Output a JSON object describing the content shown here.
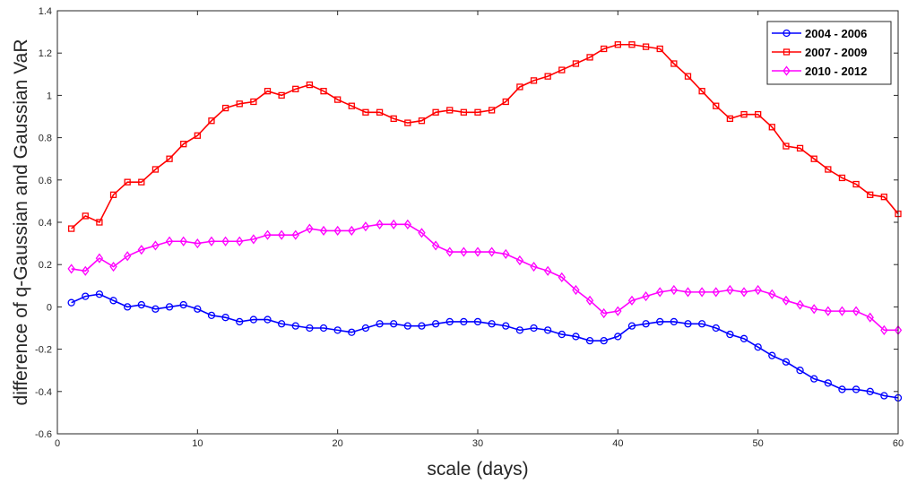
{
  "chart_data": {
    "type": "line",
    "xlabel": "scale (days)",
    "ylabel": "difference of q-Gaussian and Gaussian VaR",
    "xlim": [
      0,
      60
    ],
    "ylim": [
      -0.6,
      1.4
    ],
    "xticks": [
      0,
      10,
      20,
      30,
      40,
      50,
      60
    ],
    "xtick_labels": [
      "0",
      "10",
      "20",
      "30",
      "40",
      "50",
      "60"
    ],
    "yticks": [
      -0.6,
      -0.4,
      -0.2,
      0,
      0.2,
      0.4,
      0.6,
      0.8,
      1,
      1.2,
      1.4
    ],
    "ytick_labels": [
      "-0.6",
      "-0.4",
      "-0.2",
      "0",
      "0.2",
      "0.4",
      "0.6",
      "0.8",
      "1",
      "1.2",
      "1.4"
    ],
    "grid": false,
    "legend_position": "top-right",
    "x": [
      1,
      2,
      3,
      4,
      5,
      6,
      7,
      8,
      9,
      10,
      11,
      12,
      13,
      14,
      15,
      16,
      17,
      18,
      19,
      20,
      21,
      22,
      23,
      24,
      25,
      26,
      27,
      28,
      29,
      30,
      31,
      32,
      33,
      34,
      35,
      36,
      37,
      38,
      39,
      40,
      41,
      42,
      43,
      44,
      45,
      46,
      47,
      48,
      49,
      50,
      51,
      52,
      53,
      54,
      55,
      56,
      57,
      58,
      59,
      60
    ],
    "series": [
      {
        "name": "2004 - 2006",
        "color": "#0000ff",
        "marker": "circle",
        "values": [
          0.02,
          0.05,
          0.06,
          0.03,
          0.0,
          0.01,
          -0.01,
          0.0,
          0.01,
          -0.01,
          -0.04,
          -0.05,
          -0.07,
          -0.06,
          -0.06,
          -0.08,
          -0.09,
          -0.1,
          -0.1,
          -0.11,
          -0.12,
          -0.1,
          -0.08,
          -0.08,
          -0.09,
          -0.09,
          -0.08,
          -0.07,
          -0.07,
          -0.07,
          -0.08,
          -0.09,
          -0.11,
          -0.1,
          -0.11,
          -0.13,
          -0.14,
          -0.16,
          -0.16,
          -0.14,
          -0.09,
          -0.08,
          -0.07,
          -0.07,
          -0.08,
          -0.08,
          -0.1,
          -0.13,
          -0.15,
          -0.19,
          -0.23,
          -0.26,
          -0.3,
          -0.34,
          -0.36,
          -0.39,
          -0.39,
          -0.4,
          -0.42,
          -0.43
        ]
      },
      {
        "name": "2007 - 2009",
        "color": "#ff0000",
        "marker": "square",
        "values": [
          0.37,
          0.43,
          0.4,
          0.53,
          0.59,
          0.59,
          0.65,
          0.7,
          0.77,
          0.81,
          0.88,
          0.94,
          0.96,
          0.97,
          1.02,
          1.0,
          1.03,
          1.05,
          1.02,
          0.98,
          0.95,
          0.92,
          0.92,
          0.89,
          0.87,
          0.88,
          0.92,
          0.93,
          0.92,
          0.92,
          0.93,
          0.97,
          1.04,
          1.07,
          1.09,
          1.12,
          1.15,
          1.18,
          1.22,
          1.24,
          1.24,
          1.23,
          1.22,
          1.15,
          1.09,
          1.02,
          0.95,
          0.89,
          0.91,
          0.91,
          0.85,
          0.76,
          0.75,
          0.7,
          0.65,
          0.61,
          0.58,
          0.53,
          0.52,
          0.44
        ]
      },
      {
        "name": "2010 - 2012",
        "color": "#ff00ff",
        "marker": "diamond",
        "values": [
          0.18,
          0.17,
          0.23,
          0.19,
          0.24,
          0.27,
          0.29,
          0.31,
          0.31,
          0.3,
          0.31,
          0.31,
          0.31,
          0.32,
          0.34,
          0.34,
          0.34,
          0.37,
          0.36,
          0.36,
          0.36,
          0.38,
          0.39,
          0.39,
          0.39,
          0.35,
          0.29,
          0.26,
          0.26,
          0.26,
          0.26,
          0.25,
          0.22,
          0.19,
          0.17,
          0.14,
          0.08,
          0.03,
          -0.03,
          -0.02,
          0.03,
          0.05,
          0.07,
          0.08,
          0.07,
          0.07,
          0.07,
          0.08,
          0.07,
          0.08,
          0.06,
          0.03,
          0.01,
          -0.01,
          -0.02,
          -0.02,
          -0.02,
          -0.05,
          -0.11,
          -0.11
        ]
      }
    ]
  }
}
